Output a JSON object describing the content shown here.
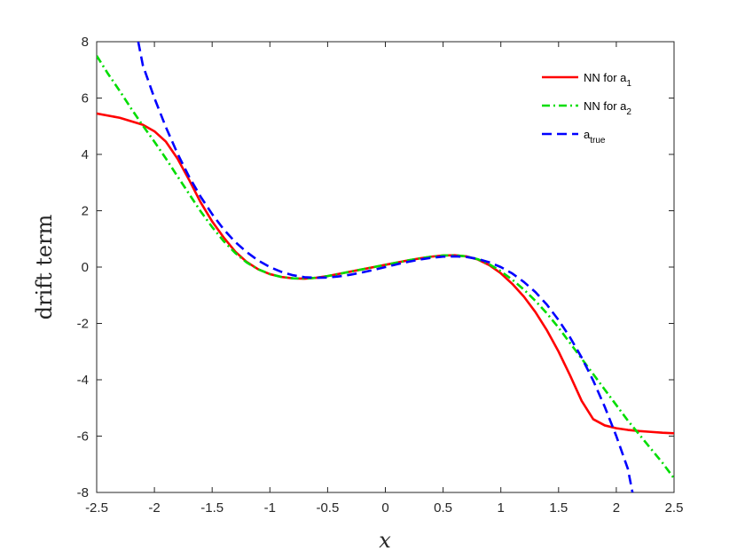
{
  "chart_data": {
    "type": "line",
    "title": "",
    "xlabel": "x",
    "ylabel": "drift term",
    "xlim": [
      -2.5,
      2.5
    ],
    "ylim": [
      -8,
      8
    ],
    "xticks": [
      "-2.5",
      "-2",
      "-1.5",
      "-1",
      "-0.5",
      "0",
      "0.5",
      "1",
      "1.5",
      "2",
      "2.5"
    ],
    "yticks": [
      "-8",
      "-6",
      "-4",
      "-2",
      "0",
      "2",
      "4",
      "6",
      "8"
    ],
    "grid": false,
    "legend_position": "top-right",
    "series": [
      {
        "name": "NN for a",
        "name_sub": "1",
        "color": "#ff0000",
        "style": "solid",
        "x": [
          -2.5,
          -2.3,
          -2.1,
          -2.0,
          -1.9,
          -1.8,
          -1.7,
          -1.6,
          -1.5,
          -1.4,
          -1.3,
          -1.2,
          -1.1,
          -1.0,
          -0.9,
          -0.8,
          -0.7,
          -0.6,
          -0.5,
          -0.4,
          -0.3,
          -0.2,
          -0.1,
          0.0,
          0.1,
          0.2,
          0.3,
          0.4,
          0.5,
          0.6,
          0.7,
          0.8,
          0.9,
          1.0,
          1.1,
          1.2,
          1.3,
          1.4,
          1.5,
          1.6,
          1.7,
          1.8,
          1.9,
          2.0,
          2.1,
          2.2,
          2.3,
          2.4,
          2.5
        ],
        "y": [
          5.45,
          5.3,
          5.05,
          4.82,
          4.45,
          3.85,
          3.1,
          2.3,
          1.62,
          1.05,
          0.55,
          0.18,
          -0.08,
          -0.25,
          -0.35,
          -0.4,
          -0.41,
          -0.38,
          -0.32,
          -0.24,
          -0.16,
          -0.08,
          0.0,
          0.08,
          0.16,
          0.24,
          0.31,
          0.37,
          0.41,
          0.42,
          0.38,
          0.27,
          0.07,
          -0.22,
          -0.6,
          -1.05,
          -1.6,
          -2.25,
          -3.0,
          -3.85,
          -4.75,
          -5.4,
          -5.62,
          -5.72,
          -5.78,
          -5.82,
          -5.85,
          -5.88,
          -5.9
        ]
      },
      {
        "name": "NN for a",
        "name_sub": "2",
        "color": "#00dd00",
        "style": "dashdot",
        "x": [
          -2.5,
          -2.4,
          -2.3,
          -2.2,
          -2.1,
          -2.0,
          -1.9,
          -1.8,
          -1.7,
          -1.6,
          -1.5,
          -1.4,
          -1.3,
          -1.2,
          -1.1,
          -1.0,
          -0.9,
          -0.8,
          -0.7,
          -0.6,
          -0.5,
          -0.4,
          -0.3,
          -0.2,
          -0.1,
          0.0,
          0.1,
          0.2,
          0.3,
          0.4,
          0.5,
          0.6,
          0.7,
          0.8,
          0.9,
          1.0,
          1.1,
          1.2,
          1.3,
          1.4,
          1.5,
          1.6,
          1.7,
          1.8,
          1.9,
          2.0,
          2.1,
          2.2,
          2.3,
          2.4,
          2.5
        ],
        "y": [
          7.5,
          6.85,
          6.25,
          5.62,
          5.02,
          4.45,
          3.85,
          3.22,
          2.6,
          1.98,
          1.42,
          0.92,
          0.5,
          0.16,
          -0.08,
          -0.25,
          -0.35,
          -0.4,
          -0.41,
          -0.38,
          -0.32,
          -0.24,
          -0.16,
          -0.08,
          0.0,
          0.08,
          0.16,
          0.24,
          0.31,
          0.37,
          0.41,
          0.42,
          0.38,
          0.28,
          0.1,
          -0.15,
          -0.45,
          -0.8,
          -1.2,
          -1.65,
          -2.15,
          -2.7,
          -3.25,
          -3.8,
          -4.35,
          -4.9,
          -5.45,
          -5.95,
          -6.45,
          -6.95,
          -7.5
        ]
      },
      {
        "name": "a",
        "name_sub": "true",
        "color": "#0000ff",
        "style": "dashed",
        "x": [
          -2.14,
          -2.1,
          -2.0,
          -1.9,
          -1.8,
          -1.7,
          -1.6,
          -1.5,
          -1.4,
          -1.3,
          -1.2,
          -1.1,
          -1.0,
          -0.9,
          -0.8,
          -0.7,
          -0.6,
          -0.5,
          -0.4,
          -0.3,
          -0.2,
          -0.1,
          0.0,
          0.1,
          0.2,
          0.3,
          0.4,
          0.5,
          0.6,
          0.7,
          0.8,
          0.9,
          1.0,
          1.1,
          1.2,
          1.3,
          1.4,
          1.5,
          1.6,
          1.7,
          1.8,
          1.9,
          2.0,
          2.1,
          2.14
        ],
        "y": [
          8.0,
          7.16,
          6.0,
          4.96,
          4.03,
          3.21,
          2.5,
          1.88,
          1.34,
          0.89,
          0.53,
          0.23,
          0.0,
          -0.17,
          -0.29,
          -0.36,
          -0.38,
          -0.37,
          -0.33,
          -0.27,
          -0.19,
          -0.1,
          0.0,
          0.1,
          0.19,
          0.27,
          0.33,
          0.37,
          0.38,
          0.36,
          0.29,
          0.17,
          0.0,
          -0.23,
          -0.53,
          -0.89,
          -1.34,
          -1.88,
          -2.5,
          -3.21,
          -4.03,
          -4.96,
          -6.0,
          -7.16,
          -8.0
        ]
      }
    ]
  }
}
